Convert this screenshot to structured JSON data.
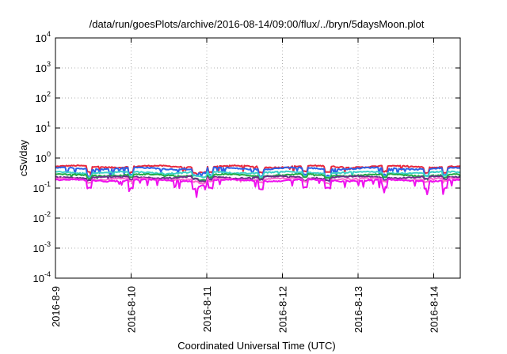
{
  "chart_data": {
    "type": "line",
    "title": "/data/run/goesPlots/archive/2016-08-14/09:00/flux/../bryn/5daysMoon.plot",
    "xlabel": "Coordinated Universal Time (UTC)",
    "ylabel": "cSv/day",
    "yscale": "log",
    "ylim": [
      0.0001,
      10000
    ],
    "xlim": [
      "2016-8-9",
      "2016-8-14 09:00"
    ],
    "x_tick_labels": [
      "2016-8-9",
      "2016-8-10",
      "2016-8-11",
      "2016-8-12",
      "2016-8-13",
      "2016-8-14"
    ],
    "y_ticks": [
      {
        "base": "10",
        "exp": "4"
      },
      {
        "base": "10",
        "exp": "3"
      },
      {
        "base": "10",
        "exp": "2"
      },
      {
        "base": "10",
        "exp": "1"
      },
      {
        "base": "10",
        "exp": "0"
      },
      {
        "base": "10",
        "exp": "-1"
      },
      {
        "base": "10",
        "exp": "-2"
      },
      {
        "base": "10",
        "exp": "-3"
      },
      {
        "base": "10",
        "exp": "-4"
      }
    ],
    "grid": true,
    "legend": "none",
    "series": [
      {
        "color": "#e8283c",
        "level": 0.52,
        "dip": 0.65,
        "phase": 0.0
      },
      {
        "color": "#2d62e6",
        "level": 0.45,
        "dip": 0.6,
        "phase": 1.3
      },
      {
        "color": "#3cd2c8",
        "level": 0.33,
        "dip": 0.75,
        "phase": 2.1
      },
      {
        "color": "#22aa44",
        "level": 0.27,
        "dip": 0.8,
        "phase": 0.7
      },
      {
        "color": "#6a2f8a",
        "level": 0.23,
        "dip": 0.82,
        "phase": 2.8
      },
      {
        "color": "#ff66cc",
        "level": 0.2,
        "dip": 0.8,
        "phase": 1.9
      },
      {
        "color": "#ee11ee",
        "level": 0.18,
        "dip": 0.55,
        "phase": 0.4
      }
    ]
  }
}
